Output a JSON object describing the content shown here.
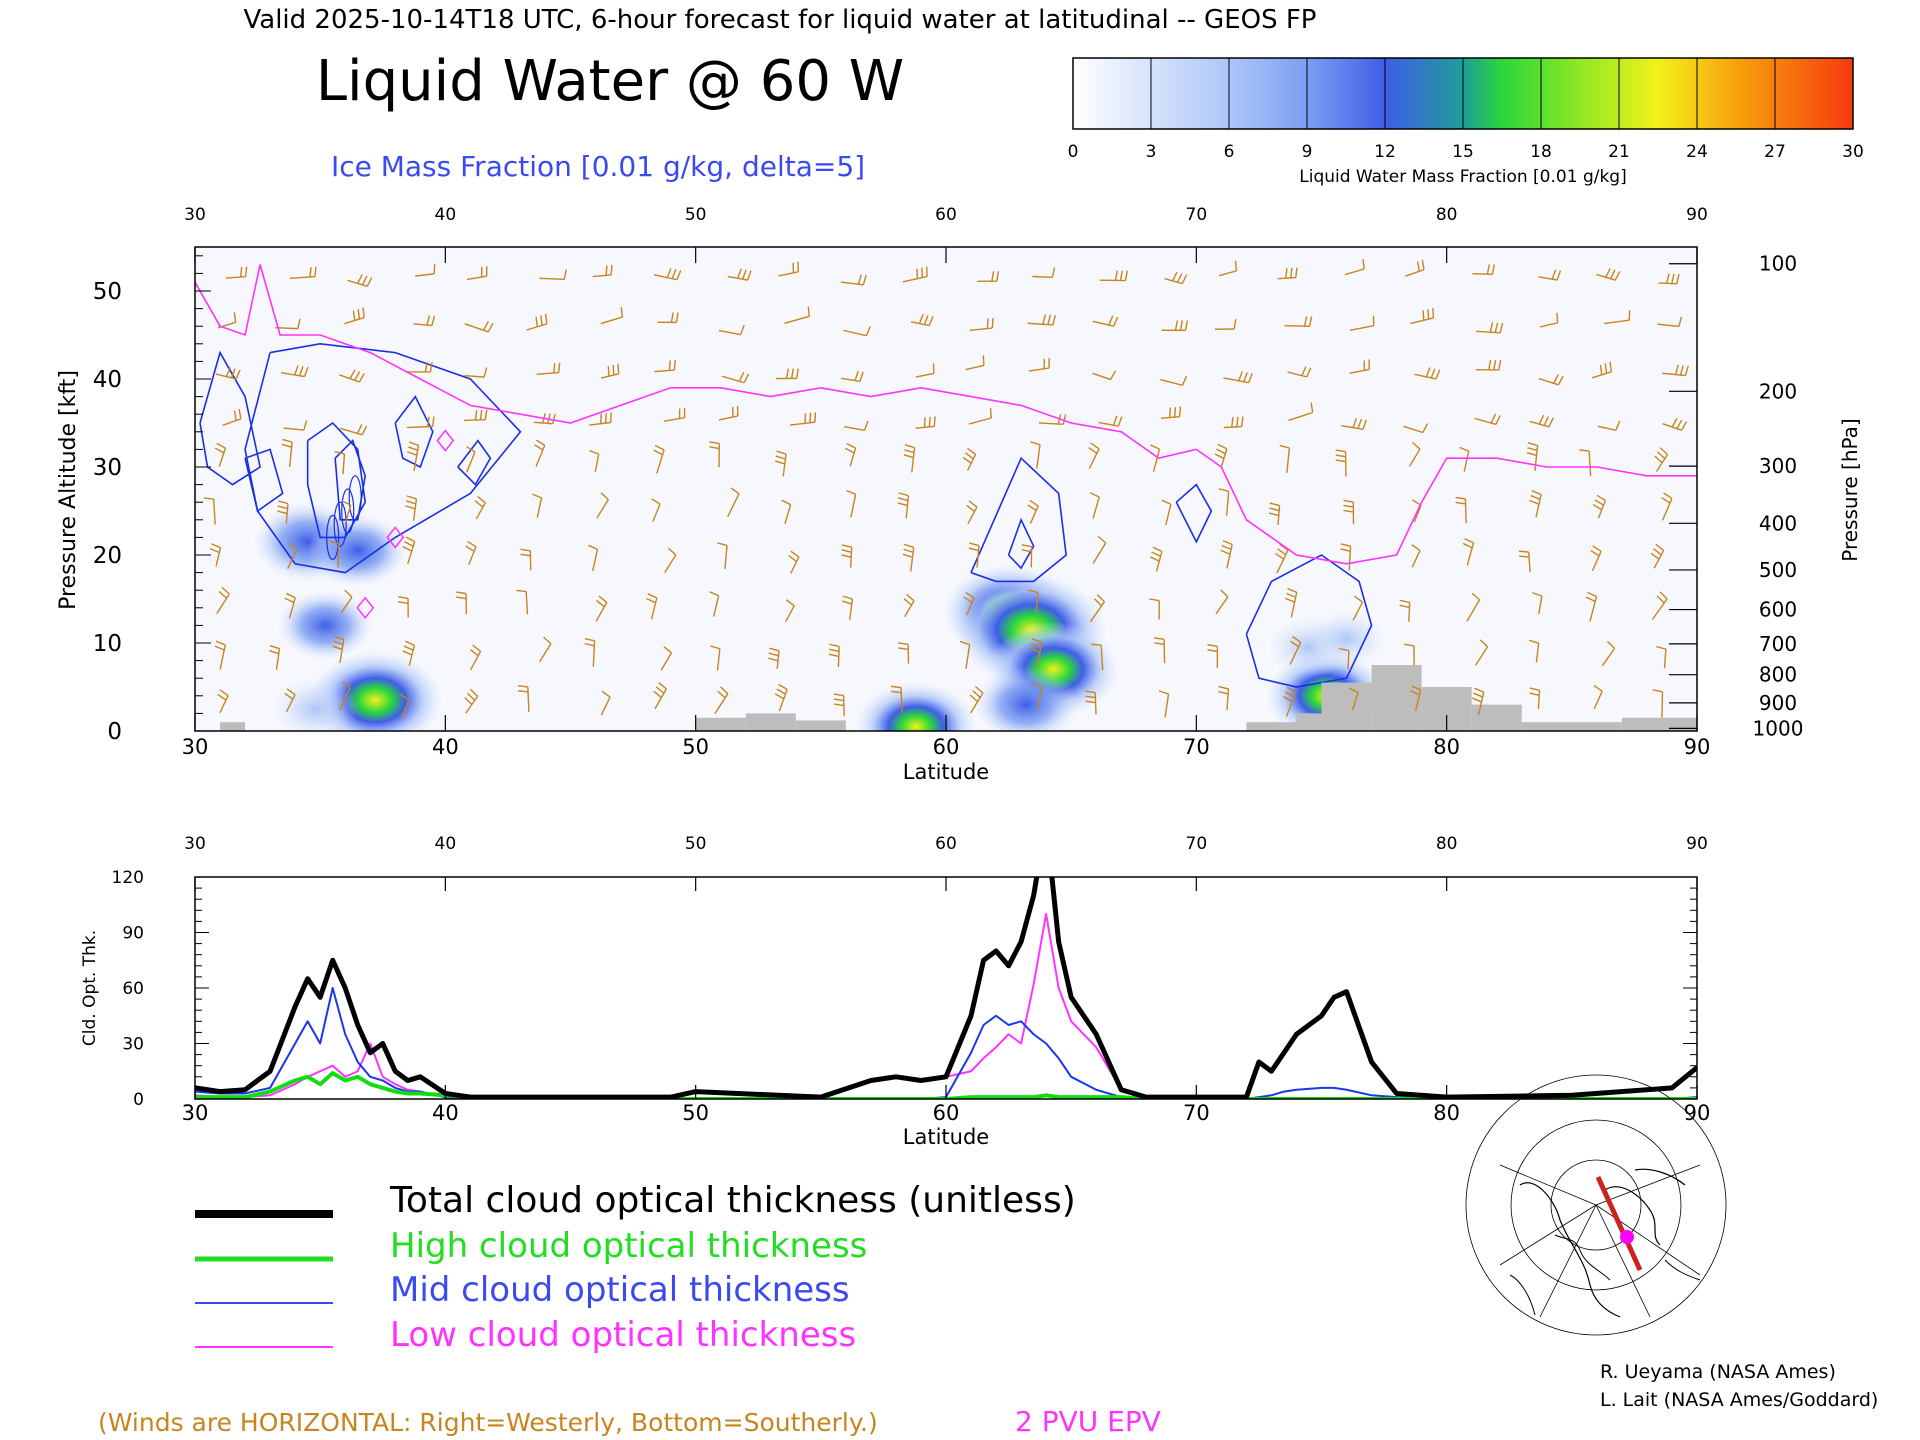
{
  "header": {
    "valid_line": "Valid 2025-10-14T18 UTC, 6-hour forecast for liquid water at latitudinal -- GEOS FP",
    "title": "Liquid Water @ 60 W",
    "subtitle": "Ice Mass Fraction [0.01 g/kg, delta=5]"
  },
  "colorbar": {
    "ticks": [
      "0",
      "3",
      "6",
      "9",
      "12",
      "15",
      "18",
      "21",
      "24",
      "27",
      "30"
    ],
    "label": "Liquid Water Mass Fraction [0.01 g/kg]",
    "colors": [
      "#f6f8fe",
      "#d6e2fb",
      "#aec6f8",
      "#7c9ef2",
      "#3f5ee8",
      "#1f9d98",
      "#29d63c",
      "#a8ee22",
      "#f2f21a",
      "#f7a20d",
      "#f55510"
    ]
  },
  "chart_data": [
    {
      "type": "heatmap",
      "title": "Liquid Water @ 60 W",
      "xlabel": "Latitude",
      "ylabel": "Pressure Altitude [kft]",
      "y2label": "Pressure [hPa]",
      "xlim": [
        30,
        90
      ],
      "ylim": [
        0,
        55
      ],
      "x_ticks": [
        "30",
        "40",
        "50",
        "60",
        "70",
        "80",
        "90"
      ],
      "y_ticks": [
        "0",
        "10",
        "20",
        "30",
        "40",
        "50"
      ],
      "pressure_ticks": [
        "100",
        "200",
        "300",
        "400",
        "500",
        "600",
        "700",
        "800",
        "900",
        "1000"
      ],
      "pressure_tick_kft": [
        53.1,
        38.6,
        30.1,
        23.6,
        18.3,
        13.8,
        9.9,
        6.4,
        3.2,
        0.3
      ],
      "liquid_water_blobs": [
        {
          "lat": 34.5,
          "kft": 21.5,
          "value": 11
        },
        {
          "lat": 36.5,
          "kft": 20.5,
          "value": 9
        },
        {
          "lat": 35.2,
          "kft": 12,
          "value": 8
        },
        {
          "lat": 37.2,
          "kft": 3.5,
          "value": 17
        },
        {
          "lat": 34.8,
          "kft": 2.5,
          "value": 6
        },
        {
          "lat": 62.5,
          "kft": 13.5,
          "value": 16
        },
        {
          "lat": 63.4,
          "kft": 11.5,
          "value": 21
        },
        {
          "lat": 64.3,
          "kft": 7,
          "value": 16
        },
        {
          "lat": 63.2,
          "kft": 3,
          "value": 10
        },
        {
          "lat": 75.2,
          "kft": 4,
          "value": 14
        },
        {
          "lat": 74.5,
          "kft": 9.5,
          "value": 5
        },
        {
          "lat": 76.0,
          "kft": 10.5,
          "value": 4
        },
        {
          "lat": 58.8,
          "kft": 0.5,
          "value": 14
        }
      ],
      "epv_2pvu_kft": [
        [
          30,
          51
        ],
        [
          31,
          46
        ],
        [
          32,
          45
        ],
        [
          32.6,
          53
        ],
        [
          33.4,
          45
        ],
        [
          35,
          45
        ],
        [
          37,
          43
        ],
        [
          39,
          40
        ],
        [
          41,
          37
        ],
        [
          43,
          36
        ],
        [
          45,
          35
        ],
        [
          47,
          37
        ],
        [
          49,
          39
        ],
        [
          51,
          39
        ],
        [
          53,
          38
        ],
        [
          55,
          39
        ],
        [
          57,
          38
        ],
        [
          59,
          39
        ],
        [
          61,
          38
        ],
        [
          63,
          37
        ],
        [
          65,
          35
        ],
        [
          67,
          34
        ],
        [
          68.5,
          31
        ],
        [
          70,
          32
        ],
        [
          71,
          30
        ],
        [
          72,
          24
        ],
        [
          74,
          20
        ],
        [
          76,
          19
        ],
        [
          78,
          20
        ],
        [
          79,
          26
        ],
        [
          80,
          31
        ],
        [
          82,
          31
        ],
        [
          84,
          30
        ],
        [
          86,
          30
        ],
        [
          88,
          29
        ],
        [
          90,
          29
        ]
      ],
      "surface_terrain": [
        [
          31,
          32,
          1
        ],
        [
          50,
          52,
          1.5
        ],
        [
          52,
          54,
          2
        ],
        [
          54,
          56,
          1.2
        ],
        [
          72,
          74,
          1
        ],
        [
          74,
          75,
          2
        ],
        [
          75,
          77,
          5.5
        ],
        [
          77,
          79,
          7.5
        ],
        [
          79,
          81,
          5
        ],
        [
          81,
          83,
          3
        ],
        [
          83,
          87,
          1
        ],
        [
          87,
          90,
          1.5
        ]
      ]
    },
    {
      "type": "line",
      "xlabel": "Latitude",
      "ylabel": "Cld. Opt. Thk.",
      "xlim": [
        30,
        90
      ],
      "ylim": [
        0,
        120
      ],
      "x_ticks": [
        "30",
        "40",
        "50",
        "60",
        "70",
        "80",
        "90"
      ],
      "y_ticks": [
        "0",
        "30",
        "60",
        "90",
        "120"
      ],
      "x": [
        30,
        31,
        32,
        33,
        34,
        34.5,
        35,
        35.5,
        36,
        36.5,
        37,
        37.5,
        38,
        38.5,
        39,
        40,
        41,
        45,
        49,
        50,
        55,
        57,
        58,
        59,
        60,
        61,
        61.5,
        62,
        62.5,
        63,
        63.5,
        64,
        64.5,
        65,
        66,
        67,
        68,
        70,
        72,
        72.5,
        73,
        73.5,
        74,
        75,
        75.5,
        76,
        77,
        78,
        80,
        85,
        89,
        90
      ],
      "series": [
        {
          "name": "Total cloud optical thickness (unitless)",
          "color": "#000000",
          "width": 5,
          "values": [
            6,
            4,
            5,
            15,
            50,
            65,
            55,
            75,
            60,
            40,
            25,
            30,
            15,
            10,
            12,
            3,
            1,
            1,
            1,
            4,
            1,
            10,
            12,
            10,
            12,
            45,
            75,
            80,
            72,
            85,
            110,
            150,
            85,
            55,
            35,
            5,
            1,
            1,
            1,
            20,
            15,
            25,
            35,
            45,
            55,
            58,
            20,
            3,
            1,
            2,
            6,
            17
          ]
        },
        {
          "name": "High cloud optical thickness",
          "color": "#11dd11",
          "width": 4,
          "values": [
            1,
            1,
            1,
            4,
            10,
            12,
            8,
            14,
            10,
            12,
            8,
            6,
            4,
            3,
            3,
            2,
            1,
            0,
            0,
            0,
            0,
            0,
            0,
            0,
            0,
            1,
            1,
            1,
            1,
            1,
            1,
            2,
            1,
            1,
            1,
            1,
            0,
            0,
            0,
            0,
            0,
            0,
            0,
            0,
            0,
            0,
            0,
            0,
            0,
            0,
            0,
            0
          ]
        },
        {
          "name": "Mid cloud optical thickness",
          "color": "#1a36ee",
          "width": 2,
          "values": [
            4,
            3,
            3,
            6,
            30,
            42,
            30,
            60,
            35,
            20,
            12,
            10,
            6,
            4,
            4,
            1,
            0,
            0,
            0,
            0,
            0,
            0,
            0,
            0,
            1,
            25,
            40,
            45,
            40,
            42,
            35,
            30,
            22,
            12,
            5,
            1,
            0,
            0,
            0,
            1,
            2,
            4,
            5,
            6,
            6,
            5,
            2,
            1,
            0,
            0,
            0,
            1
          ]
        },
        {
          "name": "Low cloud optical thickness",
          "color": "#ff33ff",
          "width": 2,
          "values": [
            2,
            1,
            1,
            2,
            8,
            12,
            15,
            18,
            12,
            15,
            30,
            12,
            8,
            5,
            4,
            1,
            1,
            1,
            1,
            4,
            1,
            10,
            12,
            10,
            12,
            15,
            22,
            28,
            35,
            30,
            62,
            100,
            60,
            42,
            28,
            5,
            1,
            1,
            1,
            20,
            15,
            24,
            34,
            44,
            54,
            57,
            20,
            3,
            1,
            2,
            6,
            16
          ]
        }
      ]
    }
  ],
  "legend": {
    "items": [
      {
        "label": "Total cloud optical thickness (unitless)",
        "color": "#000000"
      },
      {
        "label": "High cloud optical thickness",
        "color": "#22dd22"
      },
      {
        "label": "Mid cloud optical thickness",
        "color": "#3b49f0"
      },
      {
        "label": "Low cloud optical thickness",
        "color": "#ff33ff"
      }
    ]
  },
  "footer": {
    "winds_note": "(Winds are HORIZONTAL: Right=Westerly, Bottom=Southerly.)",
    "epv_label": "2 PVU EPV",
    "credit_1": "R. Ueyama (NASA Ames)",
    "credit_2": "L. Lait (NASA Ames/Goddard)"
  },
  "map_inset": {
    "icon": "polar-stereographic-map-icon",
    "track_color": "#cc2222",
    "marker_color": "#ff00ff"
  },
  "colors": {
    "wind": "#c8841e",
    "epv": "#ff33ff",
    "ice_contour": "#1a2ee6",
    "terrain": "#bdbdbd"
  }
}
